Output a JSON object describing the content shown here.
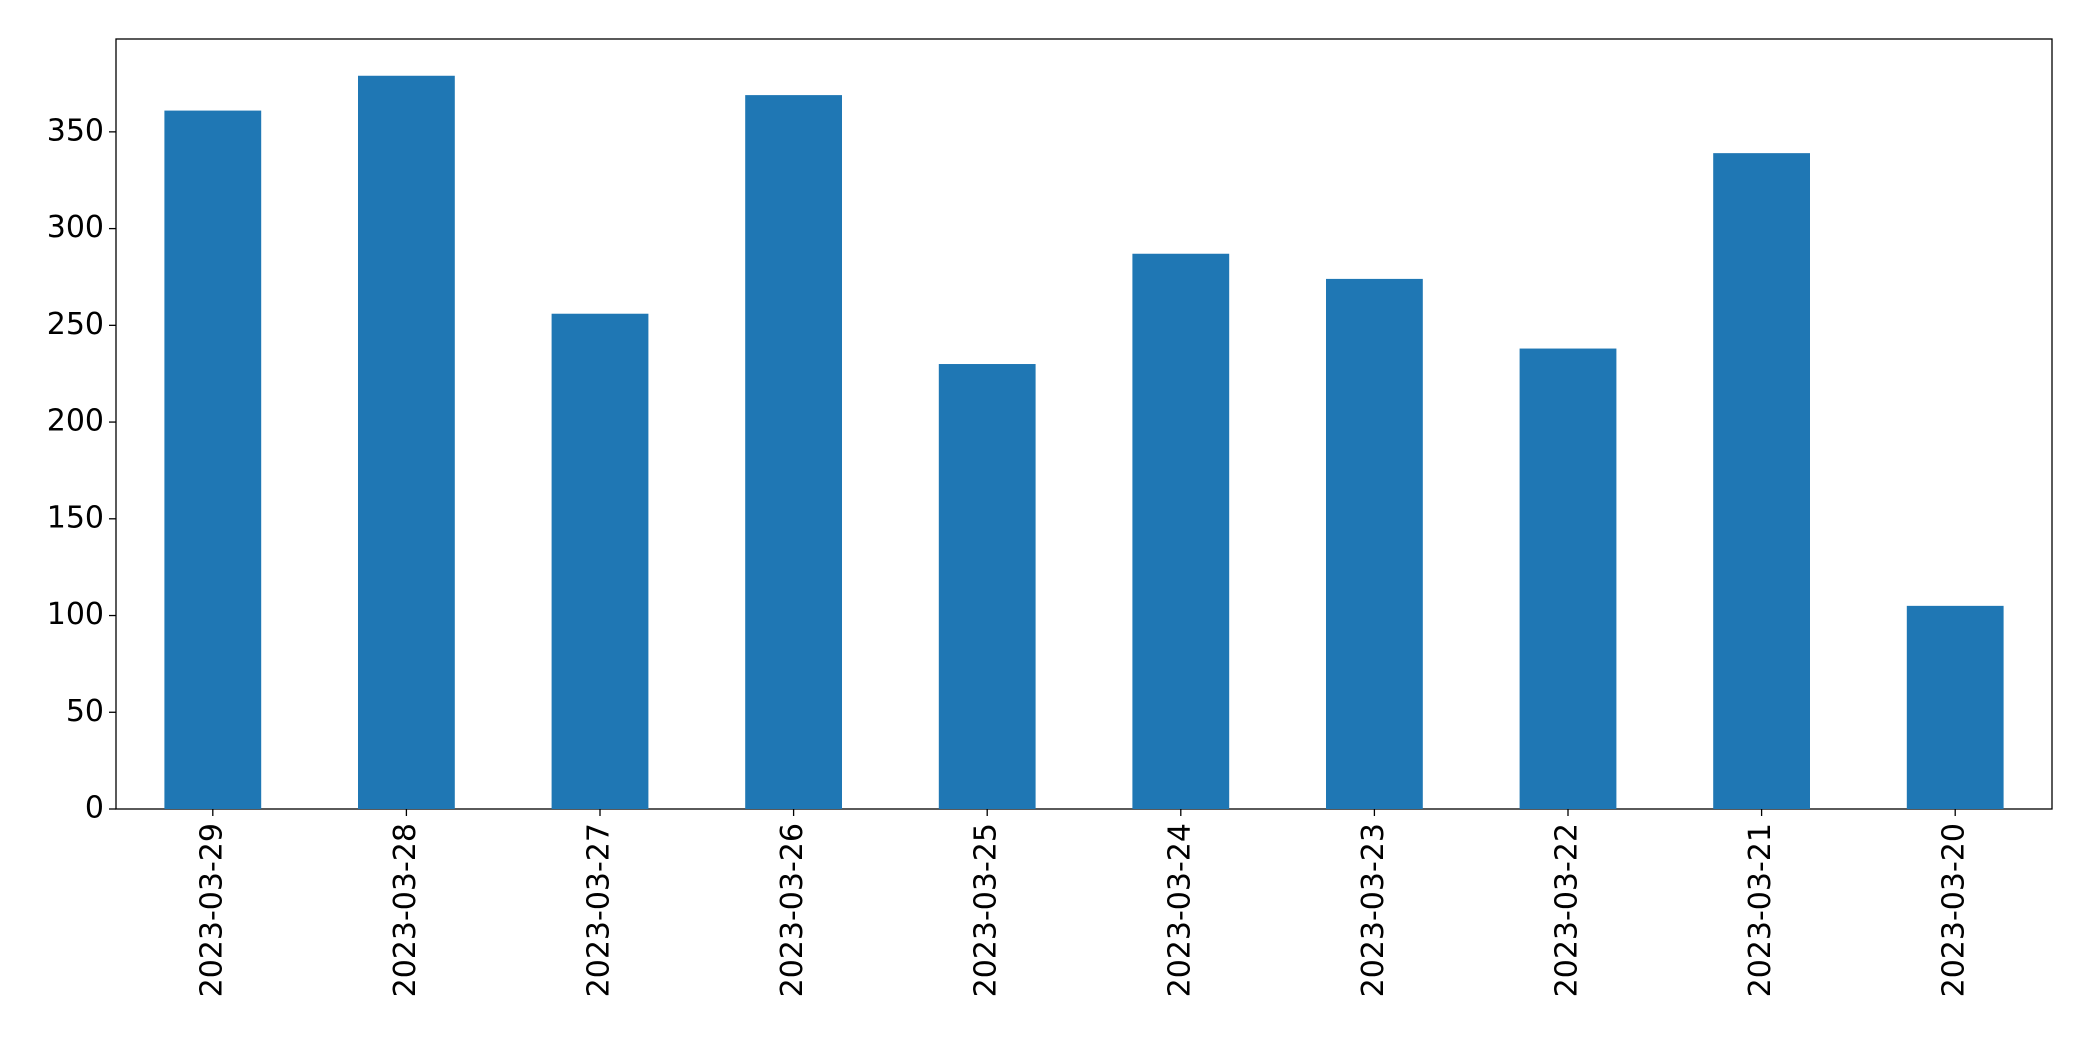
{
  "chart_data": {
    "type": "bar",
    "categories": [
      "2023-03-29",
      "2023-03-28",
      "2023-03-27",
      "2023-03-26",
      "2023-03-25",
      "2023-03-24",
      "2023-03-23",
      "2023-03-22",
      "2023-03-21",
      "2023-03-20"
    ],
    "values": [
      361,
      379,
      256,
      369,
      230,
      287,
      274,
      238,
      339,
      105
    ],
    "color": "#1f77b4",
    "ylim": [
      0,
      398
    ],
    "yticks": [
      0,
      50,
      100,
      150,
      200,
      250,
      300,
      350
    ],
    "grid": false
  }
}
